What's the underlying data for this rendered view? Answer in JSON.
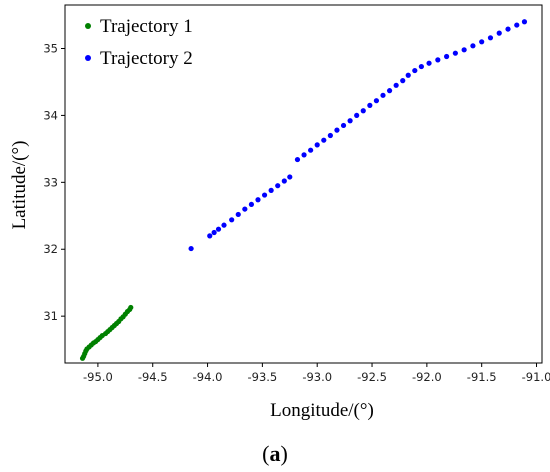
{
  "chart_data": {
    "type": "scatter",
    "title": "",
    "xlabel": "Longitude/(°)",
    "ylabel": "Latitude/(°)",
    "xlim": [
      -95.3,
      -90.95
    ],
    "ylim": [
      30.3,
      35.65
    ],
    "xticks": [
      -95.0,
      -94.5,
      -94.0,
      -93.5,
      -93.0,
      -92.5,
      -92.0,
      -91.5,
      -91.0
    ],
    "xtick_labels": [
      "-95.0",
      "-94.5",
      "-94.0",
      "-93.5",
      "-93.0",
      "-92.5",
      "-92.0",
      "-91.5",
      "-91.0"
    ],
    "yticks": [
      31,
      32,
      33,
      34,
      35
    ],
    "ytick_labels": [
      "31",
      "32",
      "33",
      "34",
      "35"
    ],
    "grid": false,
    "legend_position": "top-left",
    "series": [
      {
        "name": "Trajectory 1",
        "color": "#008000",
        "points": [
          [
            -95.14,
            30.37
          ],
          [
            -95.13,
            30.4
          ],
          [
            -95.12,
            30.44
          ],
          [
            -95.11,
            30.48
          ],
          [
            -95.1,
            30.51
          ],
          [
            -95.08,
            30.54
          ],
          [
            -95.06,
            30.57
          ],
          [
            -95.04,
            30.6
          ],
          [
            -95.02,
            30.62
          ],
          [
            -95.0,
            30.65
          ],
          [
            -94.98,
            30.68
          ],
          [
            -94.96,
            30.71
          ],
          [
            -94.93,
            30.74
          ],
          [
            -94.91,
            30.77
          ],
          [
            -94.89,
            30.8
          ],
          [
            -94.87,
            30.83
          ],
          [
            -94.85,
            30.86
          ],
          [
            -94.83,
            30.89
          ],
          [
            -94.81,
            30.92
          ],
          [
            -94.79,
            30.96
          ],
          [
            -94.77,
            30.99
          ],
          [
            -94.75,
            31.03
          ],
          [
            -94.73,
            31.07
          ],
          [
            -94.71,
            31.1
          ],
          [
            -94.7,
            31.13
          ]
        ]
      },
      {
        "name": "Trajectory 2",
        "color": "#0000ff",
        "points": [
          [
            -94.15,
            32.01
          ],
          [
            -93.98,
            32.2
          ],
          [
            -93.94,
            32.25
          ],
          [
            -93.9,
            32.3
          ],
          [
            -93.85,
            32.36
          ],
          [
            -93.78,
            32.44
          ],
          [
            -93.72,
            32.52
          ],
          [
            -93.66,
            32.6
          ],
          [
            -93.6,
            32.67
          ],
          [
            -93.54,
            32.74
          ],
          [
            -93.48,
            32.81
          ],
          [
            -93.42,
            32.88
          ],
          [
            -93.36,
            32.95
          ],
          [
            -93.3,
            33.02
          ],
          [
            -93.25,
            33.08
          ],
          [
            -93.18,
            33.34
          ],
          [
            -93.12,
            33.41
          ],
          [
            -93.06,
            33.48
          ],
          [
            -93.0,
            33.56
          ],
          [
            -92.94,
            33.63
          ],
          [
            -92.88,
            33.7
          ],
          [
            -92.82,
            33.78
          ],
          [
            -92.76,
            33.85
          ],
          [
            -92.7,
            33.92
          ],
          [
            -92.64,
            34.0
          ],
          [
            -92.58,
            34.07
          ],
          [
            -92.52,
            34.15
          ],
          [
            -92.46,
            34.22
          ],
          [
            -92.4,
            34.3
          ],
          [
            -92.34,
            34.37
          ],
          [
            -92.28,
            34.45
          ],
          [
            -92.22,
            34.52
          ],
          [
            -92.17,
            34.6
          ],
          [
            -92.11,
            34.67
          ],
          [
            -92.05,
            34.73
          ],
          [
            -91.98,
            34.78
          ],
          [
            -91.9,
            34.83
          ],
          [
            -91.82,
            34.88
          ],
          [
            -91.74,
            34.93
          ],
          [
            -91.66,
            34.98
          ],
          [
            -91.58,
            35.04
          ],
          [
            -91.5,
            35.1
          ],
          [
            -91.42,
            35.16
          ],
          [
            -91.34,
            35.23
          ],
          [
            -91.26,
            35.29
          ],
          [
            -91.18,
            35.35
          ],
          [
            -91.11,
            35.4
          ]
        ]
      }
    ]
  },
  "caption": {
    "open": "(",
    "letter": "a",
    "close": ")"
  }
}
